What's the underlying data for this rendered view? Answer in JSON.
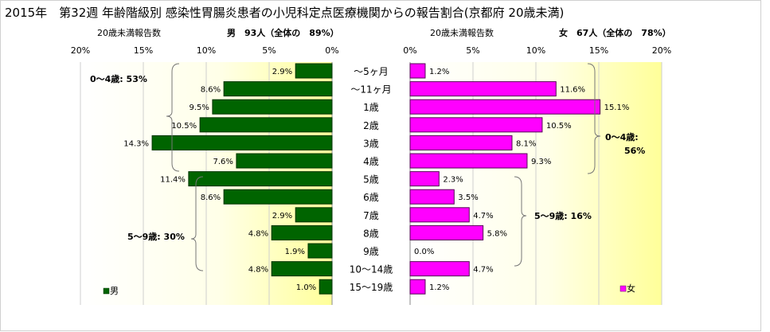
{
  "header": {
    "title": "2015年　第32週 年齢階級別 感染性胃腸炎患者の小児科定点医療機関からの報告割合(京都府 20歳未満)"
  },
  "colors": {
    "male_bar": "#006400",
    "female_bar": "#ff00ff",
    "plot_bg_light": "#ffffe0",
    "plot_bg_dark": "#ffff99"
  },
  "chart_data": [
    {
      "type": "bar",
      "orientation": "horizontal",
      "panel": "male",
      "subtitle_left": "20歳未満報告数",
      "subtitle_right": "男　93人（全体の　89%）",
      "legend": "男",
      "axis_direction": "right-to-left",
      "xlim": [
        0,
        20
      ],
      "ticks": [
        "20%",
        "15%",
        "10%",
        "5%",
        "0%"
      ],
      "categories": [
        "～5ヶ月",
        "～11ヶ月",
        "1歳",
        "2歳",
        "3歳",
        "4歳",
        "5歳",
        "6歳",
        "7歳",
        "8歳",
        "9歳",
        "10～14歳",
        "15～19歳"
      ],
      "values": [
        2.9,
        8.6,
        9.5,
        10.5,
        14.3,
        7.6,
        11.4,
        8.6,
        2.9,
        4.8,
        1.9,
        4.8,
        1.0
      ],
      "labels": [
        "2.9%",
        "8.6%",
        "9.5%",
        "10.5%",
        "14.3%",
        "7.6%",
        "11.4%",
        "8.6%",
        "2.9%",
        "4.8%",
        "1.9%",
        "4.8%",
        "1.0%"
      ],
      "groups": [
        {
          "label": "0～4歳: 53%",
          "from": 0,
          "to": 5
        },
        {
          "label": "5～9歳: 30%",
          "from": 6,
          "to": 10
        }
      ]
    },
    {
      "type": "bar",
      "orientation": "horizontal",
      "panel": "female",
      "subtitle_left": "20歳未満報告数",
      "subtitle_right": "女　67人（全体の　78%）",
      "legend": "女",
      "axis_direction": "left-to-right",
      "xlim": [
        0,
        20
      ],
      "ticks": [
        "0%",
        "5%",
        "10%",
        "15%",
        "20%"
      ],
      "categories": [
        "～5ヶ月",
        "～11ヶ月",
        "1歳",
        "2歳",
        "3歳",
        "4歳",
        "5歳",
        "6歳",
        "7歳",
        "8歳",
        "9歳",
        "10～14歳",
        "15～19歳"
      ],
      "values": [
        1.2,
        11.6,
        15.1,
        10.5,
        8.1,
        9.3,
        2.3,
        3.5,
        4.7,
        5.8,
        0.0,
        4.7,
        1.2
      ],
      "labels": [
        "1.2%",
        "11.6%",
        "15.1%",
        "10.5%",
        "8.1%",
        "9.3%",
        "2.3%",
        "3.5%",
        "4.7%",
        "5.8%",
        "0.0%",
        "4.7%",
        "1.2%"
      ],
      "groups": [
        {
          "label_line1": "0～4歳:",
          "label_line2": "56%",
          "from": 0,
          "to": 5
        },
        {
          "label": "5～9歳: 16%",
          "from": 6,
          "to": 10
        }
      ]
    }
  ]
}
